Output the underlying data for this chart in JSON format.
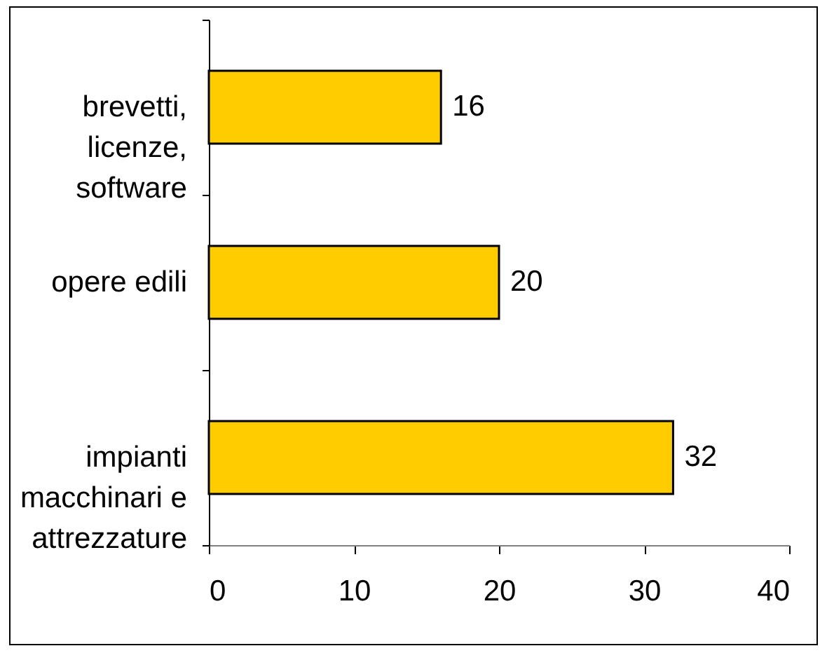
{
  "chart_data": {
    "type": "bar",
    "orientation": "horizontal",
    "categories": [
      "brevetti, licenze, software",
      "opere edili",
      "impianti macchinari e attrezzature"
    ],
    "values": [
      16,
      20,
      32
    ],
    "color": "#ffcc00",
    "xlim": [
      0,
      40
    ],
    "xticks": [
      0,
      10,
      20,
      30,
      40
    ],
    "data_labels": true
  }
}
